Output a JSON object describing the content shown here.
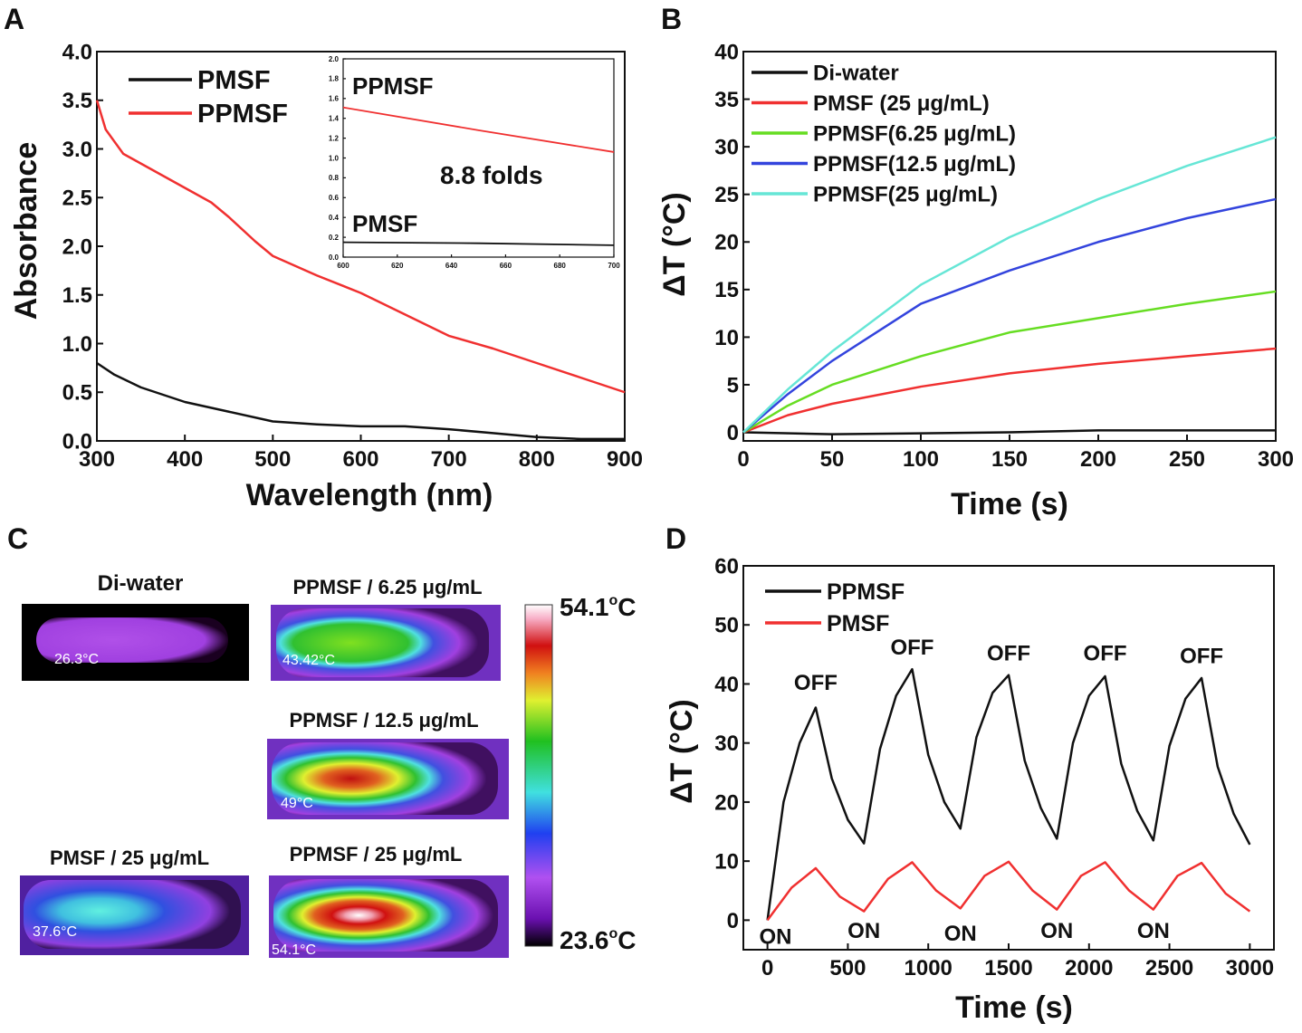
{
  "panel_letters": {
    "a": "A",
    "b": "B",
    "c": "C",
    "d": "D"
  },
  "chart_data": [
    {
      "id": "A",
      "type": "line",
      "xlabel": "Wavelength (nm)",
      "ylabel": "Absorbance",
      "xlim": [
        300,
        900
      ],
      "ylim": [
        0,
        4
      ],
      "xticks": [
        300,
        400,
        500,
        600,
        700,
        800,
        900
      ],
      "yticks": [
        "0.0",
        "0.5",
        "1.0",
        "1.5",
        "2.0",
        "2.5",
        "3.0",
        "3.5",
        "4.0"
      ],
      "legend": "top-left",
      "series": [
        {
          "name": "PMSF",
          "color": "#111111",
          "x": [
            300,
            320,
            350,
            400,
            450,
            500,
            550,
            600,
            650,
            700,
            750,
            800,
            850,
            900
          ],
          "y": [
            0.8,
            0.68,
            0.55,
            0.4,
            0.3,
            0.2,
            0.17,
            0.15,
            0.15,
            0.12,
            0.08,
            0.04,
            0.02,
            0.02
          ]
        },
        {
          "name": "PPMSF",
          "color": "#f03030",
          "x": [
            300,
            310,
            330,
            350,
            400,
            430,
            450,
            480,
            500,
            550,
            600,
            650,
            700,
            750,
            800,
            850,
            900
          ],
          "y": [
            3.5,
            3.2,
            2.95,
            2.85,
            2.6,
            2.45,
            2.3,
            2.05,
            1.9,
            1.7,
            1.52,
            1.3,
            1.08,
            0.95,
            0.8,
            0.65,
            0.5
          ]
        }
      ],
      "inset": {
        "xlim": [
          600,
          700
        ],
        "ylim": [
          0,
          2
        ],
        "xticks": [
          600,
          620,
          640,
          660,
          680,
          700
        ],
        "yticks": [
          "0.0",
          "0.2",
          "0.4",
          "0.6",
          "0.8",
          "1.0",
          "1.2",
          "1.4",
          "1.6",
          "1.8",
          "2.0"
        ],
        "labels": {
          "top": "PPMSF",
          "bottom": "PMSF",
          "annotation": "8.8 folds"
        },
        "series": [
          {
            "color": "#f03030",
            "x": [
              600,
              650,
              700
            ],
            "y": [
              1.51,
              1.28,
              1.06
            ]
          },
          {
            "color": "#111111",
            "x": [
              600,
              650,
              700
            ],
            "y": [
              0.15,
              0.14,
              0.12
            ]
          }
        ]
      }
    },
    {
      "id": "B",
      "type": "line",
      "xlabel": "Time (s)",
      "ylabel": "ΔT (°C)",
      "xlim": [
        0,
        300
      ],
      "ylim": [
        -0.9,
        40
      ],
      "xticks": [
        0,
        50,
        100,
        150,
        200,
        250,
        300
      ],
      "yticks": [
        0,
        5,
        10,
        15,
        20,
        25,
        30,
        35,
        40
      ],
      "legend": "top-left",
      "series": [
        {
          "name": "Di-water",
          "color": "#111111",
          "x": [
            0,
            50,
            100,
            150,
            200,
            250,
            300
          ],
          "y": [
            0,
            -0.2,
            -0.1,
            0,
            0.2,
            0.2,
            0.2
          ]
        },
        {
          "name": "PMSF (25 μg/mL)",
          "color": "#f03030",
          "x": [
            0,
            25,
            50,
            100,
            150,
            200,
            250,
            300
          ],
          "y": [
            0,
            1.8,
            3,
            4.8,
            6.2,
            7.2,
            8,
            8.8
          ]
        },
        {
          "name": "PPMSF(6.25 μg/mL)",
          "color": "#66dd22",
          "x": [
            0,
            25,
            50,
            100,
            150,
            200,
            250,
            300
          ],
          "y": [
            0,
            2.8,
            5,
            8,
            10.5,
            12,
            13.5,
            14.8
          ]
        },
        {
          "name": "PPMSF(12.5 μg/mL)",
          "color": "#3344dd",
          "x": [
            0,
            25,
            50,
            100,
            150,
            200,
            250,
            300
          ],
          "y": [
            0,
            4,
            7.5,
            13.5,
            17,
            20,
            22.5,
            24.5
          ]
        },
        {
          "name": "PPMSF(25 μg/mL)",
          "color": "#66e6d6",
          "x": [
            0,
            25,
            50,
            100,
            150,
            200,
            250,
            300
          ],
          "y": [
            0,
            4.5,
            8.5,
            15.5,
            20.5,
            24.5,
            28,
            31
          ]
        }
      ]
    },
    {
      "id": "D",
      "type": "line",
      "xlabel": "Time (s)",
      "ylabel": "ΔT (°C)",
      "xlim": [
        -150,
        3150
      ],
      "ylim": [
        -5,
        60
      ],
      "xticks": [
        0,
        500,
        1000,
        1500,
        2000,
        2500,
        3000
      ],
      "yticks": [
        0,
        10,
        20,
        30,
        40,
        50,
        60
      ],
      "legend": "top-left",
      "series": [
        {
          "name": "PPMSF",
          "color": "#111111",
          "x": [
            0,
            100,
            200,
            300,
            400,
            500,
            600,
            700,
            800,
            900,
            1000,
            1100,
            1200,
            1300,
            1400,
            1500,
            1600,
            1700,
            1800,
            1900,
            2000,
            2100,
            2200,
            2300,
            2400,
            2500,
            2600,
            2700,
            2800,
            2900,
            3000
          ],
          "y": [
            0,
            20,
            30,
            36,
            24,
            17,
            13,
            29,
            38,
            42.5,
            28,
            20,
            15.5,
            31,
            38.5,
            41.5,
            27,
            19,
            13.8,
            30,
            38,
            41.3,
            26.5,
            18.5,
            13.5,
            29.5,
            37.5,
            41,
            26,
            18,
            12.8
          ]
        },
        {
          "name": "PMSF",
          "color": "#f03030",
          "x": [
            0,
            150,
            300,
            450,
            600,
            750,
            900,
            1050,
            1200,
            1350,
            1500,
            1650,
            1800,
            1950,
            2100,
            2250,
            2400,
            2550,
            2700,
            2850,
            3000
          ],
          "y": [
            0,
            5.5,
            8.8,
            4,
            1.5,
            7,
            9.8,
            5,
            2,
            7.5,
            9.9,
            5,
            1.8,
            7.5,
            9.8,
            5,
            1.8,
            7.5,
            9.7,
            4.5,
            1.5
          ]
        }
      ],
      "annotations": [
        {
          "text": "OFF",
          "x": 300,
          "y": 39
        },
        {
          "text": "OFF",
          "x": 900,
          "y": 45
        },
        {
          "text": "OFF",
          "x": 1500,
          "y": 44
        },
        {
          "text": "OFF",
          "x": 2100,
          "y": 44
        },
        {
          "text": "OFF",
          "x": 2700,
          "y": 43.5
        },
        {
          "text": "ON",
          "x": 50,
          "y": -4
        },
        {
          "text": "ON",
          "x": 600,
          "y": -3
        },
        {
          "text": "ON",
          "x": 1200,
          "y": -3.5
        },
        {
          "text": "ON",
          "x": 1800,
          "y": -3
        },
        {
          "text": "ON",
          "x": 2400,
          "y": -3
        }
      ]
    }
  ],
  "thermal": {
    "images": [
      {
        "title": "Di-water",
        "temp": "26.3°C"
      },
      {
        "title": "PPMSF / 6.25 μg/mL",
        "temp": "43.42°C"
      },
      {
        "title": "PPMSF / 12.5 μg/mL",
        "temp": "49°C"
      },
      {
        "title": "PMSF / 25 μg/mL",
        "temp": "37.6°C"
      },
      {
        "title": "PPMSF / 25 μg/mL",
        "temp": "54.1°C"
      }
    ],
    "colorbar": {
      "max": "54.1",
      "min": "23.6",
      "unit_sup": "o",
      "unit": "C"
    }
  }
}
